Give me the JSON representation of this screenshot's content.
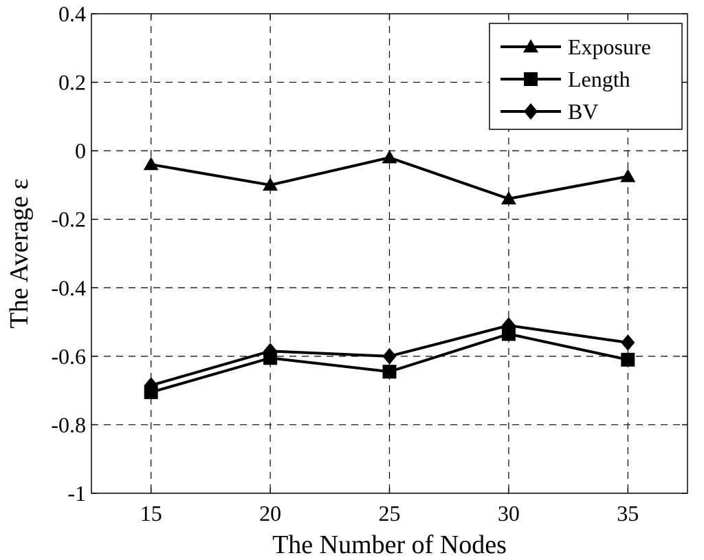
{
  "chart_data": {
    "type": "line",
    "title": "",
    "xlabel": "The Number of Nodes",
    "ylabel": "The Average ε",
    "x": [
      15,
      20,
      25,
      30,
      35
    ],
    "x_tick_labels": [
      "15",
      "20",
      "25",
      "30",
      "35"
    ],
    "xlim": [
      12.5,
      37.5
    ],
    "ylim": [
      -1,
      0.4
    ],
    "y_ticks": [
      -1,
      -0.8,
      -0.6,
      -0.4,
      -0.2,
      0,
      0.2,
      0.4
    ],
    "y_tick_labels": [
      "-1",
      "-0.8",
      "-0.6",
      "-0.4",
      "-0.2",
      "0",
      "0.2",
      "0.4"
    ],
    "grid": true,
    "legend_position": "top-right",
    "series": [
      {
        "name": "Exposure",
        "marker": "triangle",
        "values": [
          -0.04,
          -0.1,
          -0.02,
          -0.14,
          -0.075
        ]
      },
      {
        "name": "Length",
        "marker": "square",
        "values": [
          -0.705,
          -0.605,
          -0.645,
          -0.535,
          -0.61
        ]
      },
      {
        "name": "BV",
        "marker": "diamond",
        "values": [
          -0.685,
          -0.585,
          -0.6,
          -0.51,
          -0.56
        ]
      }
    ],
    "colors": {
      "line": "#000000",
      "grid": "#000000",
      "background": "#ffffff"
    }
  }
}
